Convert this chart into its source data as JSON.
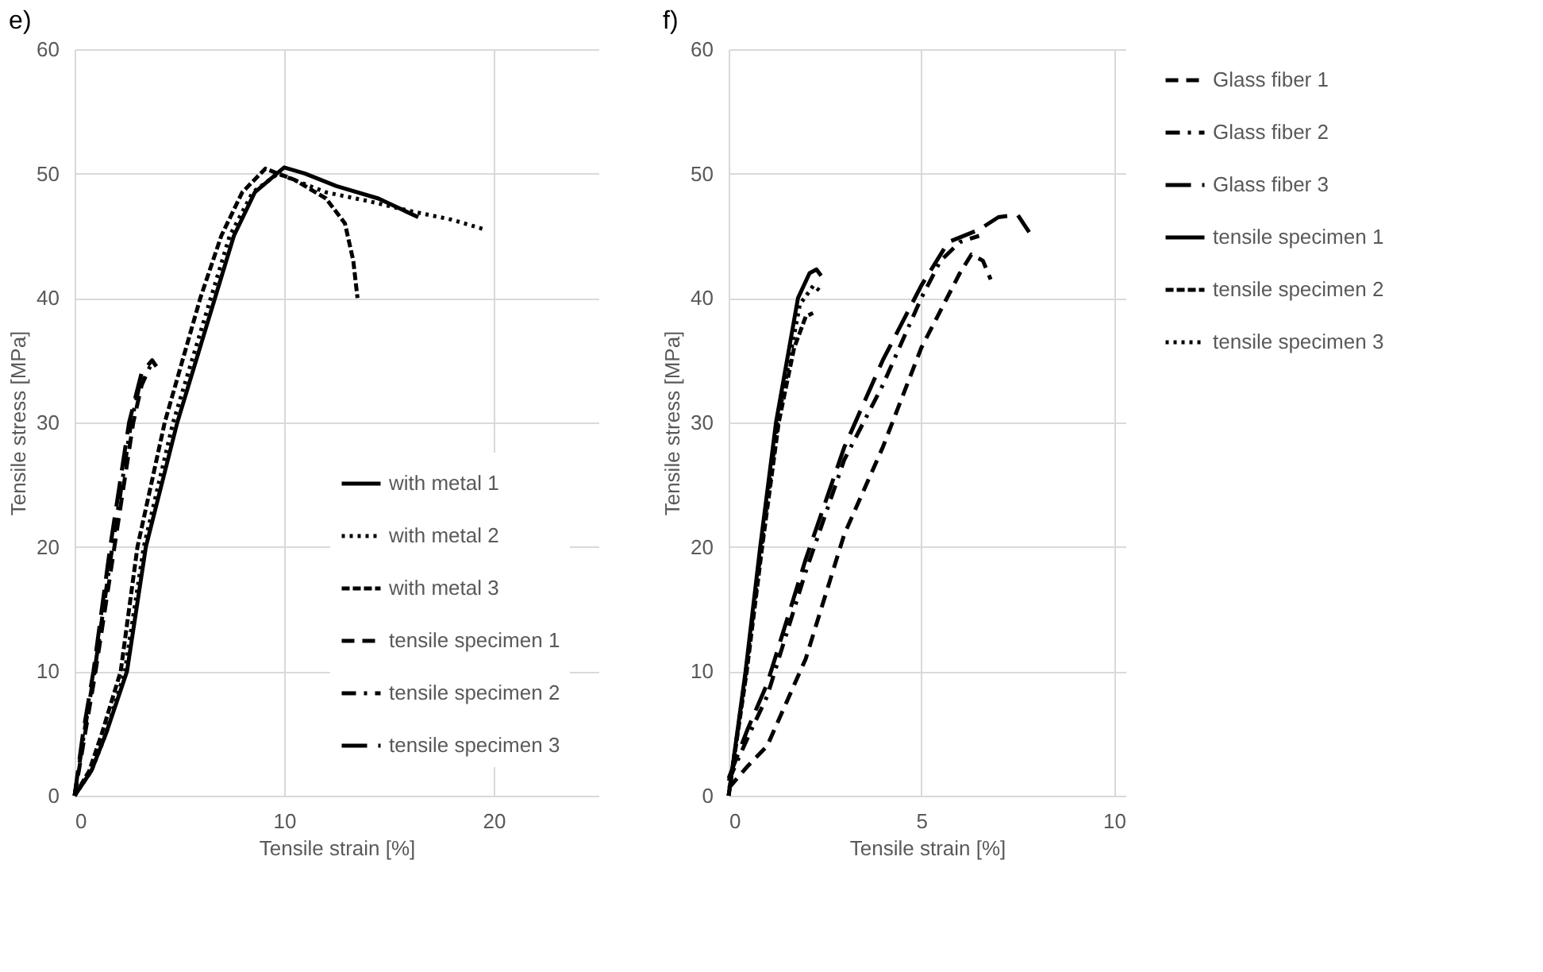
{
  "chart_data": [
    {
      "type": "line",
      "title": "e)",
      "xlabel": "Tensile strain [%]",
      "ylabel": "Tensile stress [MPa]",
      "xlim": [
        0,
        25
      ],
      "xticks": [
        0,
        10,
        20
      ],
      "ylim": [
        0,
        60
      ],
      "yticks": [
        0,
        10,
        20,
        30,
        40,
        50,
        60
      ],
      "grid": true,
      "legend": "bottom right",
      "marker": "none",
      "series": [
        {
          "name": "with metal 1",
          "color": "#000000",
          "line_style": "solid",
          "x": [
            0,
            0.8,
            1.5,
            2.5,
            3.4,
            4.9,
            6.7,
            7.6,
            8.6,
            10,
            11,
            12.5,
            14.5,
            16.4
          ],
          "values": [
            0,
            2,
            5,
            10,
            20,
            30,
            40,
            45,
            48.5,
            50.5,
            50,
            49,
            48,
            46.5
          ]
        },
        {
          "name": "with metal 2",
          "color": "#000000",
          "line_style": "dotted",
          "x": [
            0,
            0.8,
            1.5,
            2.4,
            3.3,
            4.7,
            6.5,
            7.4,
            8.5,
            9.7,
            12,
            14,
            16,
            18,
            19.6
          ],
          "values": [
            0,
            2,
            5,
            10,
            20,
            30,
            40,
            45,
            48.5,
            50,
            48.5,
            47.8,
            47,
            46.3,
            45.5
          ]
        },
        {
          "name": "with metal 3",
          "color": "#000000",
          "line_style": "dashed",
          "x": [
            0,
            0.7,
            1.3,
            2.2,
            3.0,
            4.3,
            6.0,
            7.0,
            8.0,
            9.1,
            10.5,
            12.0,
            12.9,
            13.3,
            13.5
          ],
          "values": [
            0,
            2,
            5,
            10,
            20,
            30,
            40,
            45,
            48.5,
            50.4,
            49.5,
            48,
            46,
            43,
            40
          ]
        },
        {
          "name": "tensile specimen 1",
          "color": "#000000",
          "line_style": "dash",
          "x": [
            0,
            0.5,
            1.0,
            1.9,
            2.8,
            3.2,
            3.6
          ],
          "values": [
            0,
            5,
            10,
            20,
            30,
            33,
            34.5
          ]
        },
        {
          "name": "tensile specimen 2",
          "color": "#000000",
          "line_style": "dashdot",
          "x": [
            0,
            0.45,
            0.95,
            1.8,
            2.7,
            3.1,
            3.5
          ],
          "values": [
            0,
            5,
            10,
            20,
            30,
            33,
            34
          ]
        },
        {
          "name": "tensile specimen 3",
          "color": "#000000",
          "line_style": "longdash",
          "x": [
            0,
            0.4,
            0.9,
            1.7,
            2.6,
            3.2,
            3.7,
            3.9
          ],
          "values": [
            0,
            5,
            10,
            20,
            30,
            34,
            35,
            34.5
          ]
        }
      ]
    },
    {
      "type": "line",
      "title": "f)",
      "xlabel": "Tensile strain [%]",
      "ylabel": "Tensile stress [MPa]",
      "xlim": [
        0,
        10.3
      ],
      "xticks": [
        0,
        5,
        10
      ],
      "ylim": [
        0,
        60
      ],
      "yticks": [
        0,
        10,
        20,
        30,
        40,
        50,
        60
      ],
      "grid": true,
      "legend": "right",
      "marker": "none",
      "series": [
        {
          "name": "Glass fiber 1",
          "color": "#000000",
          "line_style": "dash",
          "x": [
            0,
            0.5,
            1,
            2,
            3,
            4,
            5,
            6,
            6.3,
            6.6,
            6.8
          ],
          "values": [
            0.6,
            2.4,
            4,
            11,
            21,
            28,
            36,
            42,
            43.5,
            43,
            41.5
          ]
        },
        {
          "name": "Glass fiber 2",
          "color": "#000000",
          "line_style": "dashdot",
          "x": [
            0,
            0.5,
            1,
            2,
            3,
            4,
            5,
            5.5,
            6,
            6.5
          ],
          "values": [
            1.2,
            4.7,
            8,
            18,
            27,
            33,
            40,
            43,
            44.5,
            45
          ]
        },
        {
          "name": "Glass fiber 3",
          "color": "#000000",
          "line_style": "longdash",
          "x": [
            0,
            0.5,
            1,
            2,
            3,
            4,
            5,
            5.7,
            6.5,
            7,
            7.5,
            7.8
          ],
          "values": [
            1.4,
            5.4,
            9,
            19,
            28,
            35,
            41,
            44.5,
            45.5,
            46.5,
            46.7,
            45.3
          ]
        },
        {
          "name": "tensile specimen 1",
          "color": "#000000",
          "line_style": "solid",
          "x": [
            0,
            0.44,
            0.82,
            1.23,
            1.8,
            2.1,
            2.28,
            2.4
          ],
          "values": [
            0,
            10,
            20,
            30,
            40,
            42,
            42.3,
            41.8
          ]
        },
        {
          "name": "tensile specimen 2",
          "color": "#000000",
          "line_style": "dashed",
          "x": [
            0,
            0.47,
            0.87,
            1.3,
            1.7,
            2.0,
            2.19
          ],
          "values": [
            0,
            10,
            20,
            30,
            36,
            38.5,
            38.8
          ]
        },
        {
          "name": "tensile specimen 3",
          "color": "#000000",
          "line_style": "dotted",
          "x": [
            0,
            0.45,
            0.85,
            1.27,
            1.85,
            2.2,
            2.4
          ],
          "values": [
            0,
            10,
            20,
            30,
            39.5,
            41,
            40.5
          ]
        }
      ]
    }
  ]
}
